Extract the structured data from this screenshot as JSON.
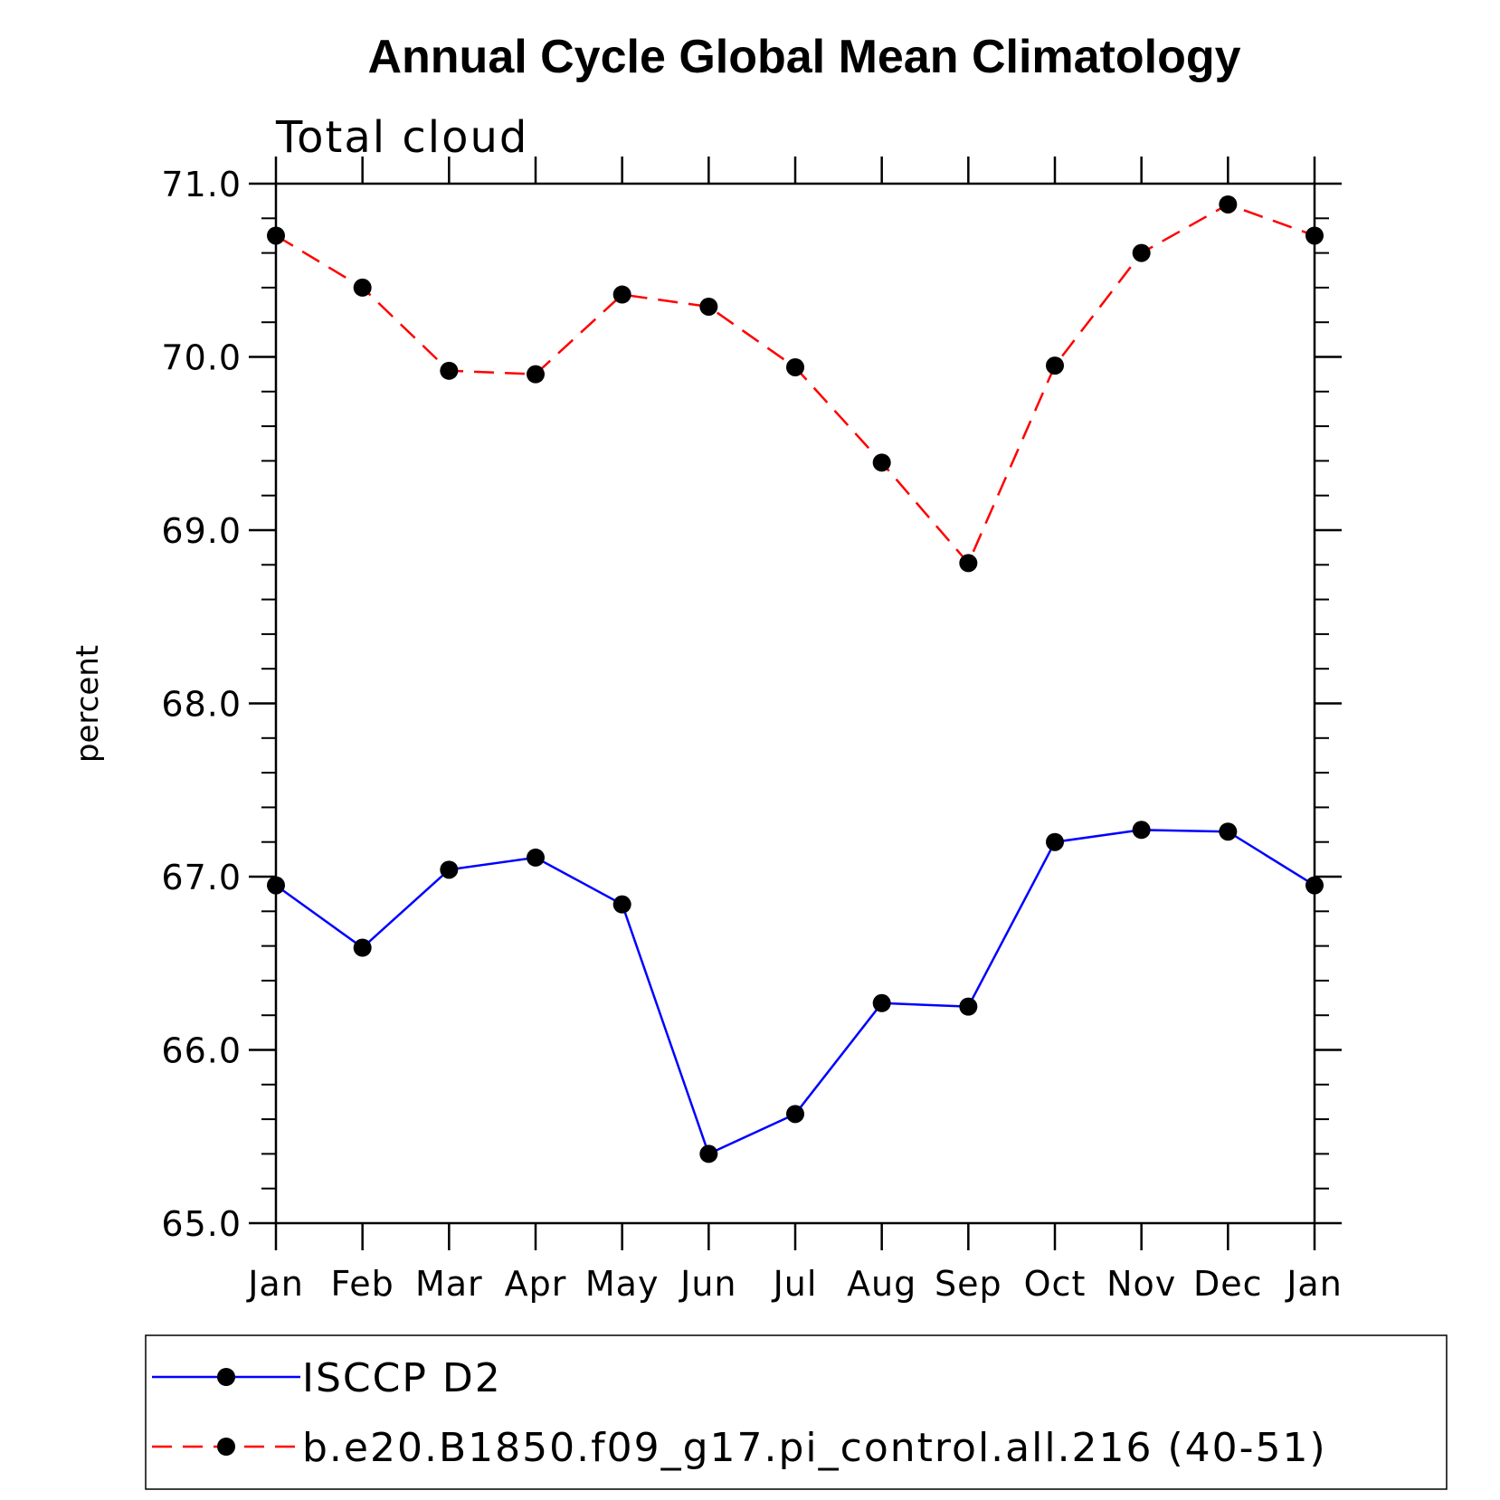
{
  "chart_data": {
    "type": "line",
    "title": "Annual Cycle Global Mean Climatology",
    "subtitle": "Total cloud",
    "ylabel": "percent",
    "xlabel": "",
    "ylim": [
      65.0,
      71.0
    ],
    "y_major_ticks": [
      "65.0",
      "66.0",
      "67.0",
      "68.0",
      "69.0",
      "70.0",
      "71.0"
    ],
    "y_minor_step": 0.2,
    "categories": [
      "Jan",
      "Feb",
      "Mar",
      "Apr",
      "May",
      "Jun",
      "Jul",
      "Aug",
      "Sep",
      "Oct",
      "Nov",
      "Dec",
      "Jan"
    ],
    "series": [
      {
        "name": "ISCCP D2",
        "color": "#0000ff",
        "dash": "solid",
        "marker": "filled-circle",
        "values": [
          66.95,
          66.59,
          67.04,
          67.11,
          66.84,
          65.4,
          65.63,
          66.27,
          66.25,
          67.2,
          67.27,
          67.26,
          66.95
        ]
      },
      {
        "name": "b.e20.B1850.f09_g17.pi_control.all.216 (40-51)",
        "color": "#ff0000",
        "dash": "dashed",
        "marker": "filled-circle",
        "values": [
          70.7,
          70.4,
          69.92,
          69.9,
          70.36,
          70.29,
          69.94,
          69.39,
          68.81,
          69.95,
          70.6,
          70.88,
          70.7
        ]
      }
    ],
    "legend_position": "bottom"
  }
}
